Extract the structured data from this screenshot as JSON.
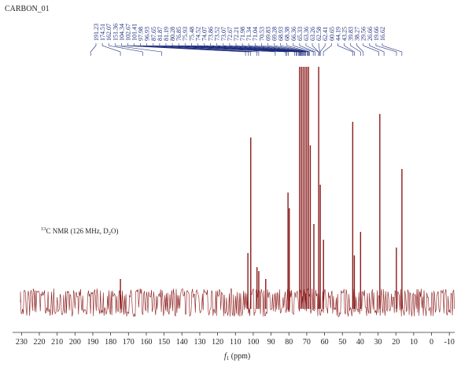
{
  "chart_data": {
    "type": "nmr",
    "title": "CARBON_01",
    "annotation": {
      "sup": "13",
      "text": "C NMR (126 MHz, D",
      "sub": "2",
      "tail": "O)"
    },
    "x_label": {
      "text": "f",
      "sub": "1",
      "tail": " (ppm)"
    },
    "xlim": [
      235,
      -13
    ],
    "xticks": [
      230,
      220,
      210,
      200,
      190,
      180,
      170,
      160,
      150,
      140,
      130,
      120,
      110,
      100,
      90,
      80,
      70,
      60,
      50,
      40,
      30,
      20,
      10,
      0,
      -10
    ],
    "ylim": [
      0,
      320
    ],
    "color": "#8b1a1a",
    "label_color": "#1a2a7a",
    "peaks": {
      "x": [
        174.5,
        103.0,
        101.4,
        97.9,
        96.9,
        93.0,
        80.5,
        79.8,
        74.0,
        73.0,
        72.0,
        71.0,
        70.0,
        69.0,
        68.0,
        66.0,
        63.3,
        62.4,
        60.6,
        44.2,
        43.3,
        39.8,
        29.0,
        19.7,
        16.6
      ],
      "values": [
        30,
        63,
        210,
        45,
        40,
        30,
        140,
        120,
        300,
        300,
        300,
        300,
        300,
        300,
        200,
        100,
        300,
        150,
        80,
        230,
        60,
        90,
        240,
        70,
        170
      ]
    },
    "peak_labels": [
      191.23,
      174.51,
      162.07,
      151.36,
      104.34,
      102.67,
      101.41,
      97.98,
      96.93,
      87.65,
      81.87,
      81.19,
      80.28,
      76.85,
      75.93,
      75.48,
      74.52,
      74.07,
      73.86,
      73.52,
      73.07,
      72.67,
      72.21,
      71.98,
      71.34,
      71.04,
      70.53,
      69.83,
      69.28,
      68.93,
      68.38,
      66.36,
      65.33,
      63.36,
      63.26,
      62.58,
      62.41,
      60.65,
      44.19,
      43.25,
      39.83,
      38.27,
      29.56,
      26.66,
      19.66,
      16.62
    ]
  }
}
